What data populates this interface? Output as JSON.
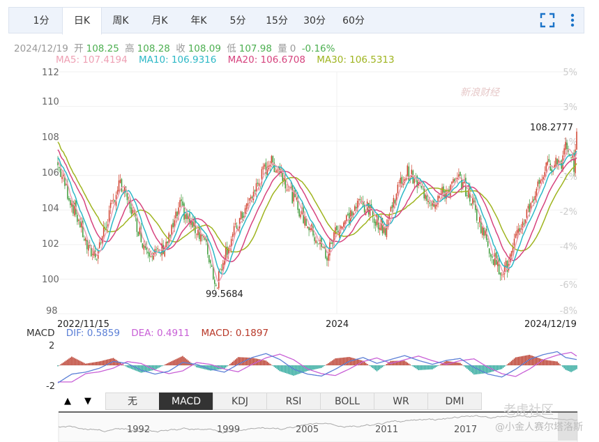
{
  "tabs": [
    "1分",
    "日K",
    "周K",
    "月K",
    "年K",
    "5分",
    "15分",
    "30分",
    "60分"
  ],
  "active_tab": "日K",
  "quote": {
    "date": "2024/12/19",
    "open_label": "开",
    "open": "108.25",
    "high_label": "高",
    "high": "108.28",
    "close_label": "收",
    "close": "108.09",
    "low_label": "低",
    "low": "107.98",
    "volume_label": "量",
    "volume": "0",
    "change": "-0.16%"
  },
  "ma": {
    "ma5": "MA5: 107.4194",
    "ma10": "MA10: 106.9316",
    "ma20": "MA20: 106.6708",
    "ma30": "MA30: 106.5313"
  },
  "colors": {
    "ma5": "#ee9fb3",
    "ma10": "#2cb8c6",
    "ma20": "#d6437e",
    "ma30": "#9fb41f",
    "up": "#d0402c",
    "down": "#3c9a38",
    "dif": "#5b7fd6",
    "dea": "#c85fd6",
    "macd_up": "#b83828",
    "macd_down": "#2aa79b",
    "change_green": "#4caf50"
  },
  "macd": {
    "label": "MACD",
    "dif": "DIF: 0.5859",
    "dea": "DEA: 0.4911",
    "macd": "MACD: 0.1897",
    "y_ticks": [
      "2",
      "-2"
    ]
  },
  "indicator_tabs": [
    "无",
    "MACD",
    "KDJ",
    "RSI",
    "BOLL",
    "WR",
    "DMI"
  ],
  "active_indicator": "MACD",
  "nav_buttons": [
    "▲",
    "▼"
  ],
  "overview_years": [
    "1992",
    "1999",
    "2005",
    "2011",
    "2017"
  ],
  "watermarks": {
    "sina": "新浪财经",
    "community": "老虎社区",
    "user": "@小金人赛尔塔洛斯"
  },
  "chart_data": {
    "type": "candlestick",
    "x_labels": [
      "2022/11/15",
      "2024",
      "2024/12/19"
    ],
    "y_ticks_left": [
      "112",
      "110",
      "108",
      "106",
      "104",
      "102",
      "100",
      "98"
    ],
    "y_ticks_right": [
      "5%",
      "3%",
      "1%",
      "-1%",
      "-2%",
      "-4%",
      "-6%",
      "-8%"
    ],
    "ylim": [
      98,
      112
    ],
    "annotations": [
      {
        "label": "99.5684",
        "type": "min"
      },
      {
        "label": "108.2777",
        "type": "max"
      }
    ],
    "close_path": [
      [
        0,
        106.6
      ],
      [
        8,
        104.8
      ],
      [
        16,
        103.2
      ],
      [
        22,
        101.6
      ],
      [
        28,
        101.5
      ],
      [
        36,
        103.5
      ],
      [
        44,
        105.5
      ],
      [
        52,
        104.3
      ],
      [
        62,
        102.0
      ],
      [
        72,
        101.4
      ],
      [
        80,
        102.3
      ],
      [
        88,
        104.2
      ],
      [
        96,
        103.2
      ],
      [
        104,
        102.6
      ],
      [
        110,
        101.0
      ],
      [
        114,
        99.6
      ],
      [
        120,
        101.5
      ],
      [
        132,
        103.5
      ],
      [
        144,
        105.5
      ],
      [
        152,
        106.8
      ],
      [
        160,
        106.4
      ],
      [
        168,
        105.0
      ],
      [
        176,
        103.7
      ],
      [
        186,
        102.4
      ],
      [
        194,
        101.3
      ],
      [
        200,
        102.8
      ],
      [
        210,
        103.6
      ],
      [
        218,
        104.5
      ],
      [
        226,
        103.8
      ],
      [
        236,
        102.9
      ],
      [
        244,
        105.1
      ],
      [
        252,
        106.2
      ],
      [
        262,
        105.2
      ],
      [
        270,
        104.5
      ],
      [
        280,
        105.1
      ],
      [
        290,
        105.8
      ],
      [
        298,
        104.6
      ],
      [
        306,
        102.9
      ],
      [
        312,
        101.6
      ],
      [
        318,
        100.6
      ],
      [
        324,
        100.7
      ],
      [
        332,
        102.7
      ],
      [
        342,
        104.6
      ],
      [
        350,
        106.2
      ],
      [
        358,
        106.8
      ],
      [
        363,
        106.8
      ],
      [
        366,
        107.9
      ],
      [
        370,
        107.3
      ],
      [
        372,
        106.5
      ],
      [
        374,
        108.1
      ]
    ],
    "macd_path": [
      [
        0,
        -1.8
      ],
      [
        10,
        -0.9
      ],
      [
        20,
        -0.7
      ],
      [
        30,
        -0.3
      ],
      [
        40,
        0.4
      ],
      [
        50,
        0.2
      ],
      [
        60,
        -0.5
      ],
      [
        70,
        -0.9
      ],
      [
        80,
        -0.6
      ],
      [
        90,
        0.3
      ],
      [
        100,
        0.1
      ],
      [
        110,
        -0.4
      ],
      [
        120,
        -0.7
      ],
      [
        130,
        0.1
      ],
      [
        140,
        0.8
      ],
      [
        150,
        1.2
      ],
      [
        160,
        0.6
      ],
      [
        170,
        -0.4
      ],
      [
        180,
        -0.9
      ],
      [
        190,
        -1.1
      ],
      [
        200,
        -0.4
      ],
      [
        210,
        0.4
      ],
      [
        220,
        0.8
      ],
      [
        230,
        0.2
      ],
      [
        240,
        0.6
      ],
      [
        250,
        1.0
      ],
      [
        260,
        0.5
      ],
      [
        270,
        0.1
      ],
      [
        280,
        0.5
      ],
      [
        290,
        0.7
      ],
      [
        300,
        -0.2
      ],
      [
        310,
        -0.9
      ],
      [
        320,
        -1.2
      ],
      [
        330,
        -0.4
      ],
      [
        340,
        0.6
      ],
      [
        350,
        1.1
      ],
      [
        360,
        1.4
      ],
      [
        366,
        0.8
      ],
      [
        374,
        0.59
      ]
    ]
  }
}
